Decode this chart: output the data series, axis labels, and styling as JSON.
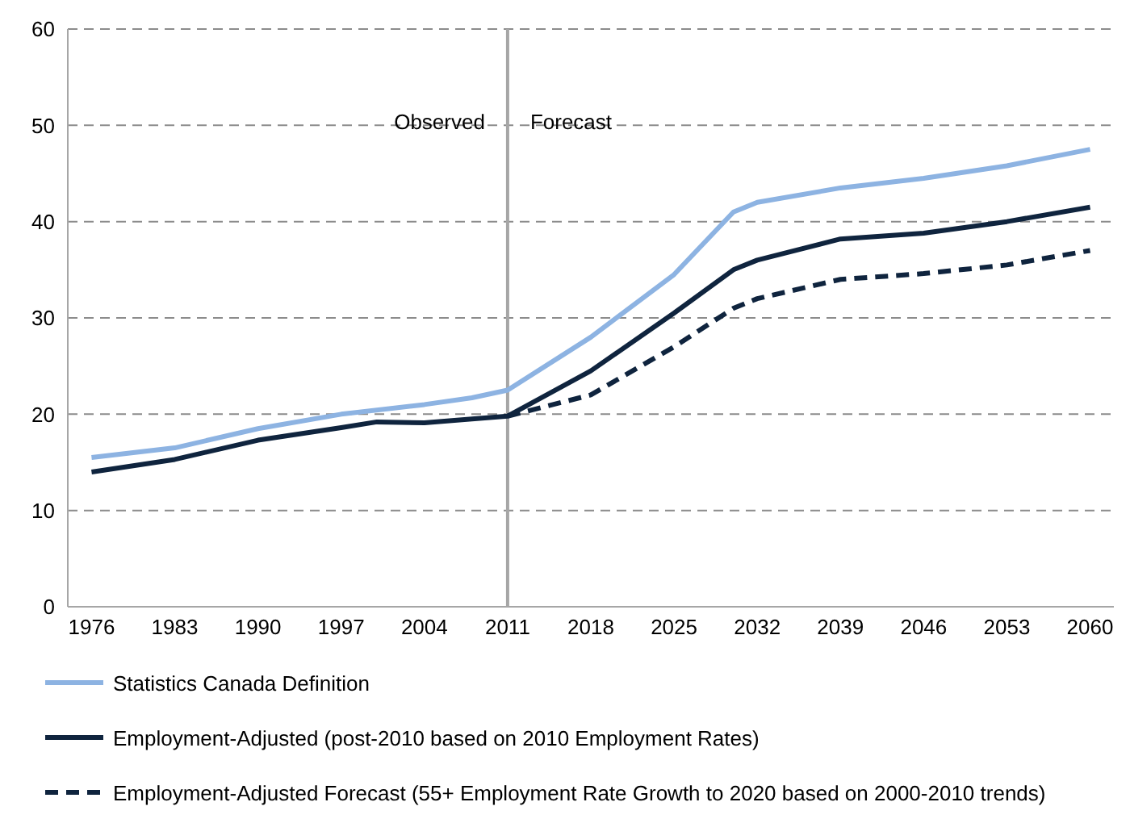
{
  "chart_data": {
    "type": "line",
    "xlim": [
      1974,
      2062
    ],
    "xticks": [
      1976,
      1983,
      1990,
      1997,
      2004,
      2011,
      2018,
      2025,
      2032,
      2039,
      2046,
      2053,
      2060
    ],
    "ylim": [
      0,
      60
    ],
    "yticks": [
      0,
      10,
      20,
      30,
      40,
      50,
      60
    ],
    "grid": "y",
    "legend": "bottom",
    "marker": "none",
    "annotations": [
      "Observed",
      "Forecast"
    ],
    "ref_lines": [
      {
        "axis": "x",
        "value": 2011,
        "color": "#a6a6a6"
      }
    ],
    "series": [
      {
        "name": "Statistics Canada Definition",
        "color": "#8db3e2",
        "line_style": "solid",
        "x": [
          1976,
          1983,
          1990,
          1997,
          2004,
          2008,
          2011,
          2018,
          2025,
          2030,
          2032,
          2039,
          2046,
          2053,
          2060
        ],
        "values": [
          15.5,
          16.5,
          18.5,
          20,
          21,
          21.7,
          22.5,
          28,
          34.5,
          41,
          42,
          43.5,
          44.5,
          45.8,
          47.5
        ]
      },
      {
        "name": "Employment-Adjusted (post-2010 based on 2010 Employment Rates)",
        "color": "#0f243e",
        "line_style": "solid",
        "x": [
          1976,
          1983,
          1990,
          1997,
          2000,
          2004,
          2008,
          2011,
          2018,
          2025,
          2030,
          2032,
          2039,
          2046,
          2053,
          2060
        ],
        "values": [
          14,
          15.3,
          17.3,
          18.6,
          19.2,
          19.1,
          19.5,
          19.8,
          24.5,
          30.5,
          35,
          36,
          38.2,
          38.8,
          40,
          41.5
        ]
      },
      {
        "name": "Employment-Adjusted Forecast (55+ Employment Rate Growth to 2020 based on 2000-2010 trends)",
        "color": "#0f243e",
        "line_style": "dashed",
        "x": [
          2011,
          2018,
          2025,
          2030,
          2032,
          2039,
          2046,
          2053,
          2060
        ],
        "values": [
          19.8,
          22,
          27,
          31,
          32,
          34,
          34.6,
          35.5,
          37
        ]
      }
    ]
  }
}
